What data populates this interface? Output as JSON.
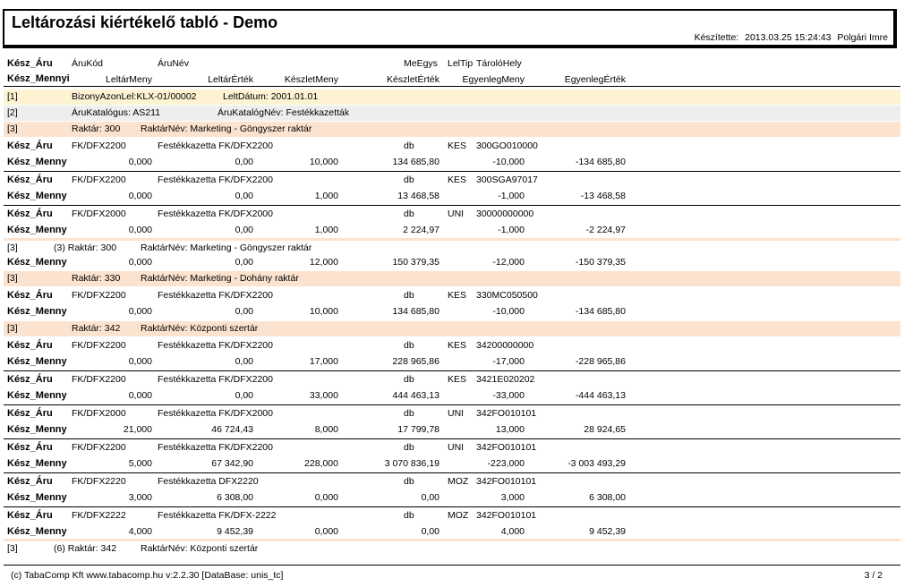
{
  "title": "Leltározási kiértékelő tabló - Demo",
  "made_by": {
    "label": "Készítette:",
    "datetime": "2013.03.25 15:24:43",
    "name": "Polgári Imre"
  },
  "header": {
    "row1": {
      "a": "Kész_Áru",
      "b": "ÁruKód",
      "c": "ÁruNév",
      "d": "MeEgys",
      "e": "LelTip",
      "f": "TárolóHely"
    },
    "row2": {
      "a": "Kész_Mennyi",
      "b": "LeltárMeny",
      "c": "LeltárÉrték",
      "d": "KészletMeny",
      "e": "KészletÉrték",
      "f": "EgyenlegMeny",
      "g": "EgyenlegÉrték"
    }
  },
  "groups": [
    {
      "code": "[1]",
      "text1": "BizonyAzonLel:KLX-01/00002",
      "text2": "LeltDátum:  2001.01.01"
    },
    {
      "code": "[2]",
      "text1": "ÁruKatalógus: AS211",
      "text2": "ÁruKatalógNév: Festékkazetták"
    },
    {
      "code": "[3]",
      "text1": "Raktár:  300",
      "text2": "RaktárNév:  Marketing - Göngyszer raktár"
    }
  ],
  "items": [
    {
      "aru": "Kész_Áru",
      "kod": "FK/DFX2200",
      "nev": "Festékkazetta FK/DFX2200",
      "me": "db",
      "tip": "KES",
      "hely": "300GO010000",
      "menny": "Kész_Menny",
      "lm": "0,000",
      "le": "0,00",
      "km": "10,000",
      "ke": "134 685,80",
      "em": "-10,000",
      "ee": "-134 685,80"
    },
    {
      "aru": "Kész_Áru",
      "kod": "FK/DFX2200",
      "nev": "Festékkazetta FK/DFX2200",
      "me": "db",
      "tip": "KES",
      "hely": "300SGA97017",
      "menny": "Kész_Menny",
      "lm": "0,000",
      "le": "0,00",
      "km": "1,000",
      "ke": "13 468,58",
      "em": "-1,000",
      "ee": "-13 468,58"
    },
    {
      "aru": "Kész_Áru",
      "kod": "FK/DFX2000",
      "nev": "Festékkazetta FK/DFX2000",
      "me": "db",
      "tip": "UNI",
      "hely": "30000000000",
      "menny": "Kész_Menny",
      "lm": "0,000",
      "le": "0,00",
      "km": "1,000",
      "ke": "2 224,97",
      "em": "-1,000",
      "ee": "-2 224,97"
    }
  ],
  "subtotal1": {
    "code": "[3]",
    "count": "(3) Raktár:  300",
    "name": "RaktárNév:  Marketing - Göngyszer raktár",
    "menny": "Kész_Menny",
    "lm": "0,000",
    "le": "0,00",
    "km": "12,000",
    "ke": "150 379,35",
    "em": "-12,000",
    "ee": "-150 379,35"
  },
  "group330": {
    "code": "[3]",
    "text1": "Raktár:  330",
    "text2": "RaktárNév:  Marketing - Dohány raktár"
  },
  "items330": [
    {
      "aru": "Kész_Áru",
      "kod": "FK/DFX2200",
      "nev": "Festékkazetta FK/DFX2200",
      "me": "db",
      "tip": "KES",
      "hely": "330MC050500",
      "menny": "Kész_Menny",
      "lm": "0,000",
      "le": "0,00",
      "km": "10,000",
      "ke": "134 685,80",
      "em": "-10,000",
      "ee": "-134 685,80"
    }
  ],
  "group342": {
    "code": "[3]",
    "text1": "Raktár:  342",
    "text2": "RaktárNév:  Központi szertár"
  },
  "items342": [
    {
      "aru": "Kész_Áru",
      "kod": "FK/DFX2200",
      "nev": "Festékkazetta FK/DFX2200",
      "me": "db",
      "tip": "KES",
      "hely": "34200000000",
      "menny": "Kész_Menny",
      "lm": "0,000",
      "le": "0,00",
      "km": "17,000",
      "ke": "228 965,86",
      "em": "-17,000",
      "ee": "-228 965,86"
    },
    {
      "aru": "Kész_Áru",
      "kod": "FK/DFX2200",
      "nev": "Festékkazetta FK/DFX2200",
      "me": "db",
      "tip": "KES",
      "hely": "3421E020202",
      "menny": "Kész_Menny",
      "lm": "0,000",
      "le": "0,00",
      "km": "33,000",
      "ke": "444 463,13",
      "em": "-33,000",
      "ee": "-444 463,13"
    },
    {
      "aru": "Kész_Áru",
      "kod": "FK/DFX2000",
      "nev": "Festékkazetta FK/DFX2000",
      "me": "db",
      "tip": "UNI",
      "hely": "342FO010101",
      "menny": "Kész_Menny",
      "lm": "21,000",
      "le": "46 724,43",
      "km": "8,000",
      "ke": "17 799,78",
      "em": "13,000",
      "ee": "28 924,65"
    },
    {
      "aru": "Kész_Áru",
      "kod": "FK/DFX2200",
      "nev": "Festékkazetta FK/DFX2200",
      "me": "db",
      "tip": "UNI",
      "hely": "342FO010101",
      "menny": "Kész_Menny",
      "lm": "5,000",
      "le": "67 342,90",
      "km": "228,000",
      "ke": "3 070 836,19",
      "em": "-223,000",
      "ee": "-3 003 493,29"
    },
    {
      "aru": "Kész_Áru",
      "kod": "FK/DFX2220",
      "nev": "Festékkazetta DFX2220",
      "me": "db",
      "tip": "MOZ",
      "hely": "342FO010101",
      "menny": "Kész_Menny",
      "lm": "3,000",
      "le": "6 308,00",
      "km": "0,000",
      "ke": "0,00",
      "em": "3,000",
      "ee": "6 308,00"
    },
    {
      "aru": "Kész_Áru",
      "kod": "FK/DFX2222",
      "nev": "Festékkazetta FK/DFX-2222",
      "me": "db",
      "tip": "MOZ",
      "hely": "342FO010101",
      "menny": "Kész_Menny",
      "lm": "4,000",
      "le": "9 452,39",
      "km": "0,000",
      "ke": "0,00",
      "em": "4,000",
      "ee": "9 452,39"
    }
  ],
  "subtotal2": {
    "code": "[3]",
    "count": "(6) Raktár:  342",
    "name": "RaktárNév:  Központi szertár"
  },
  "footer": {
    "left": "(c) TabaComp Kft  www.tabacomp.hu  v:2.2.30 [DataBase: unis_tc]",
    "page": "3  / 2"
  }
}
